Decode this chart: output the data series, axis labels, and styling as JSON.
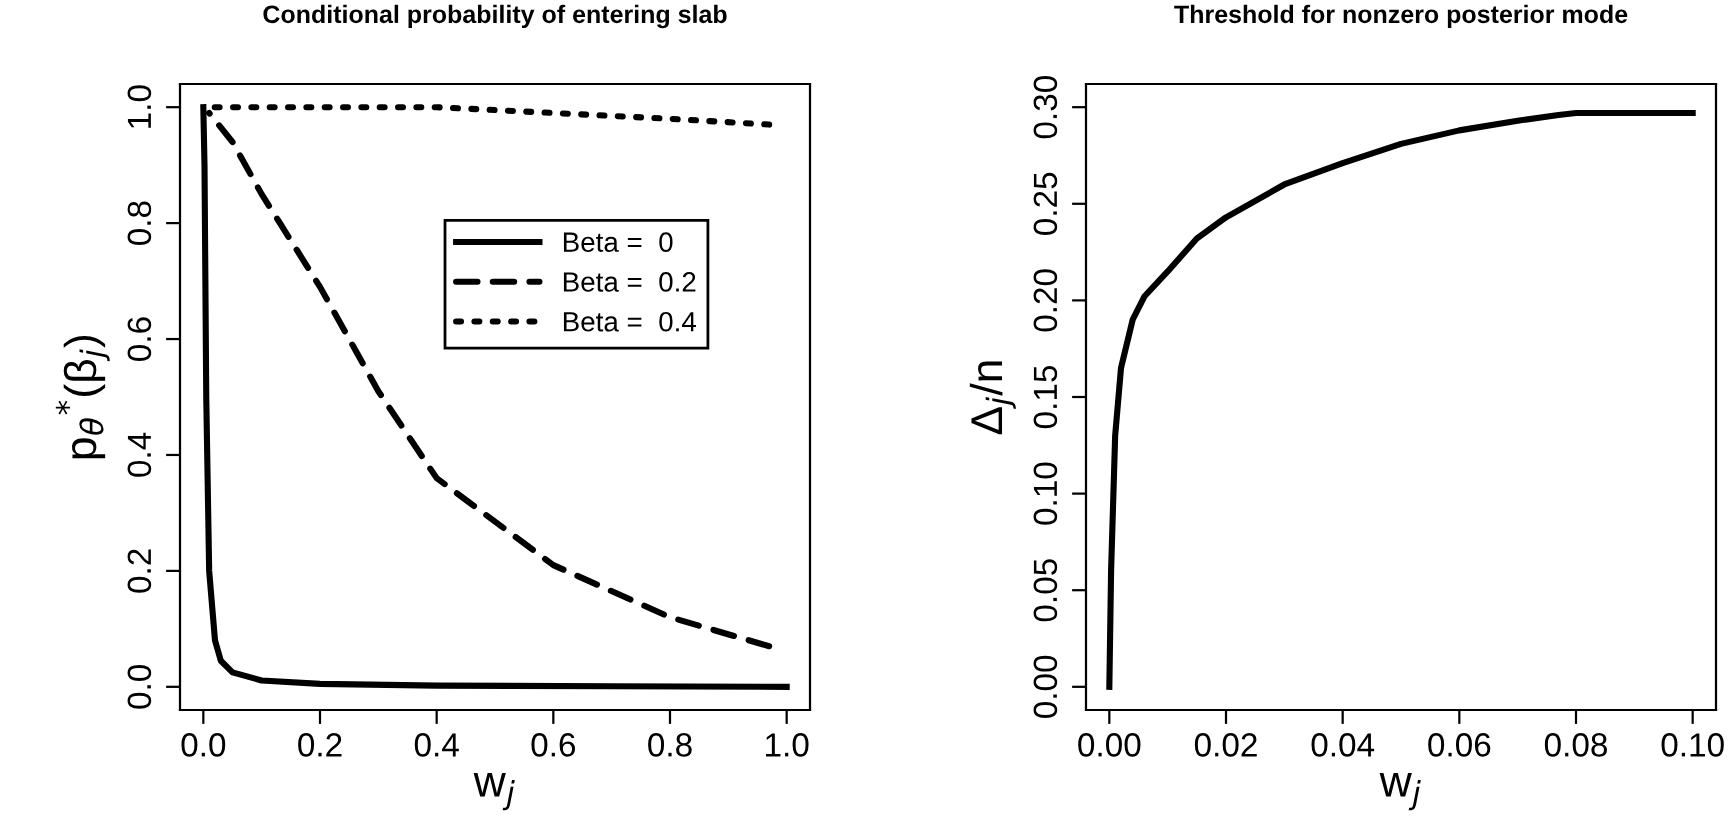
{
  "chart_data": [
    {
      "type": "line",
      "title": "Conditional probability of entering slab",
      "xlabel": "w$_{j}$",
      "ylabel": "p$_{θ}$$^{*}$(β$_{j}$)",
      "xlim": [
        -0.04,
        1.04
      ],
      "ylim": [
        -0.04,
        1.04
      ],
      "xticks": [
        {
          "value": 0,
          "label": "0.0"
        },
        0.2,
        0.4,
        0.6,
        0.8,
        {
          "value": 1,
          "label": "1.0"
        }
      ],
      "yticks": [
        {
          "value": 0,
          "label": "0.0"
        },
        0.2,
        0.4,
        0.6,
        0.8,
        {
          "value": 1,
          "label": "1.0"
        }
      ],
      "grid": false,
      "legend": "right",
      "series": [
        {
          "name": "Beta =  0",
          "color": "#000000",
          "line_style": "solid",
          "x": [
            0,
            0.002,
            0.005,
            0.01,
            0.02,
            0.03,
            0.05,
            0.1,
            0.2,
            0.4,
            0.7,
            1.0
          ],
          "values": [
            1.0,
            0.9,
            0.5,
            0.2,
            0.08,
            0.045,
            0.025,
            0.011,
            0.005,
            0.002,
            0.001,
            0.0
          ]
        },
        {
          "name": "Beta =  0.2",
          "color": "#000000",
          "line_style": "dashed",
          "x": [
            0.01,
            0.05,
            0.1,
            0.2,
            0.3,
            0.4,
            0.6,
            0.8,
            0.97
          ],
          "values": [
            0.99,
            0.94,
            0.85,
            0.69,
            0.51,
            0.36,
            0.21,
            0.12,
            0.07
          ]
        },
        {
          "name": "Beta =  0.4",
          "color": "#000000",
          "line_style": "dotted",
          "x": [
            0.01,
            0.2,
            0.4,
            0.6,
            0.8,
            0.97
          ],
          "values": [
            1.0,
            1.0,
            1.0,
            0.99,
            0.98,
            0.97
          ]
        }
      ]
    },
    {
      "type": "line",
      "title": "Threshold for nonzero posterior mode",
      "xlabel": "w$_{j}$",
      "ylabel": "Δ$_{j}$/n",
      "xlim": [
        -0.004,
        0.104
      ],
      "ylim": [
        -0.012,
        0.312
      ],
      "xticks": [
        {
          "value": 0,
          "label": "0.00"
        },
        0.02,
        0.04,
        0.06,
        0.08,
        {
          "value": 0.1,
          "label": "0.10"
        }
      ],
      "yticks": [
        {
          "value": 0,
          "label": "0.00"
        },
        0.05,
        {
          "value": 0.1,
          "label": "0.10"
        },
        0.15,
        {
          "value": 0.2,
          "label": "0.20"
        },
        0.25,
        {
          "value": 0.3,
          "label": "0.30"
        }
      ],
      "grid": false,
      "series": [
        {
          "color": "#000000",
          "line_style": "solid",
          "x": [
            0,
            0.0003,
            0.0007,
            0.001,
            0.002,
            0.004,
            0.006,
            0.01,
            0.015,
            0.02,
            0.03,
            0.04,
            0.05,
            0.06,
            0.07,
            0.077,
            0.08,
            0.1
          ],
          "values": [
            0.0,
            0.06,
            0.1,
            0.13,
            0.165,
            0.19,
            0.202,
            0.215,
            0.232,
            0.243,
            0.26,
            0.271,
            0.281,
            0.288,
            0.293,
            0.296,
            0.297,
            0.297
          ]
        }
      ]
    }
  ]
}
